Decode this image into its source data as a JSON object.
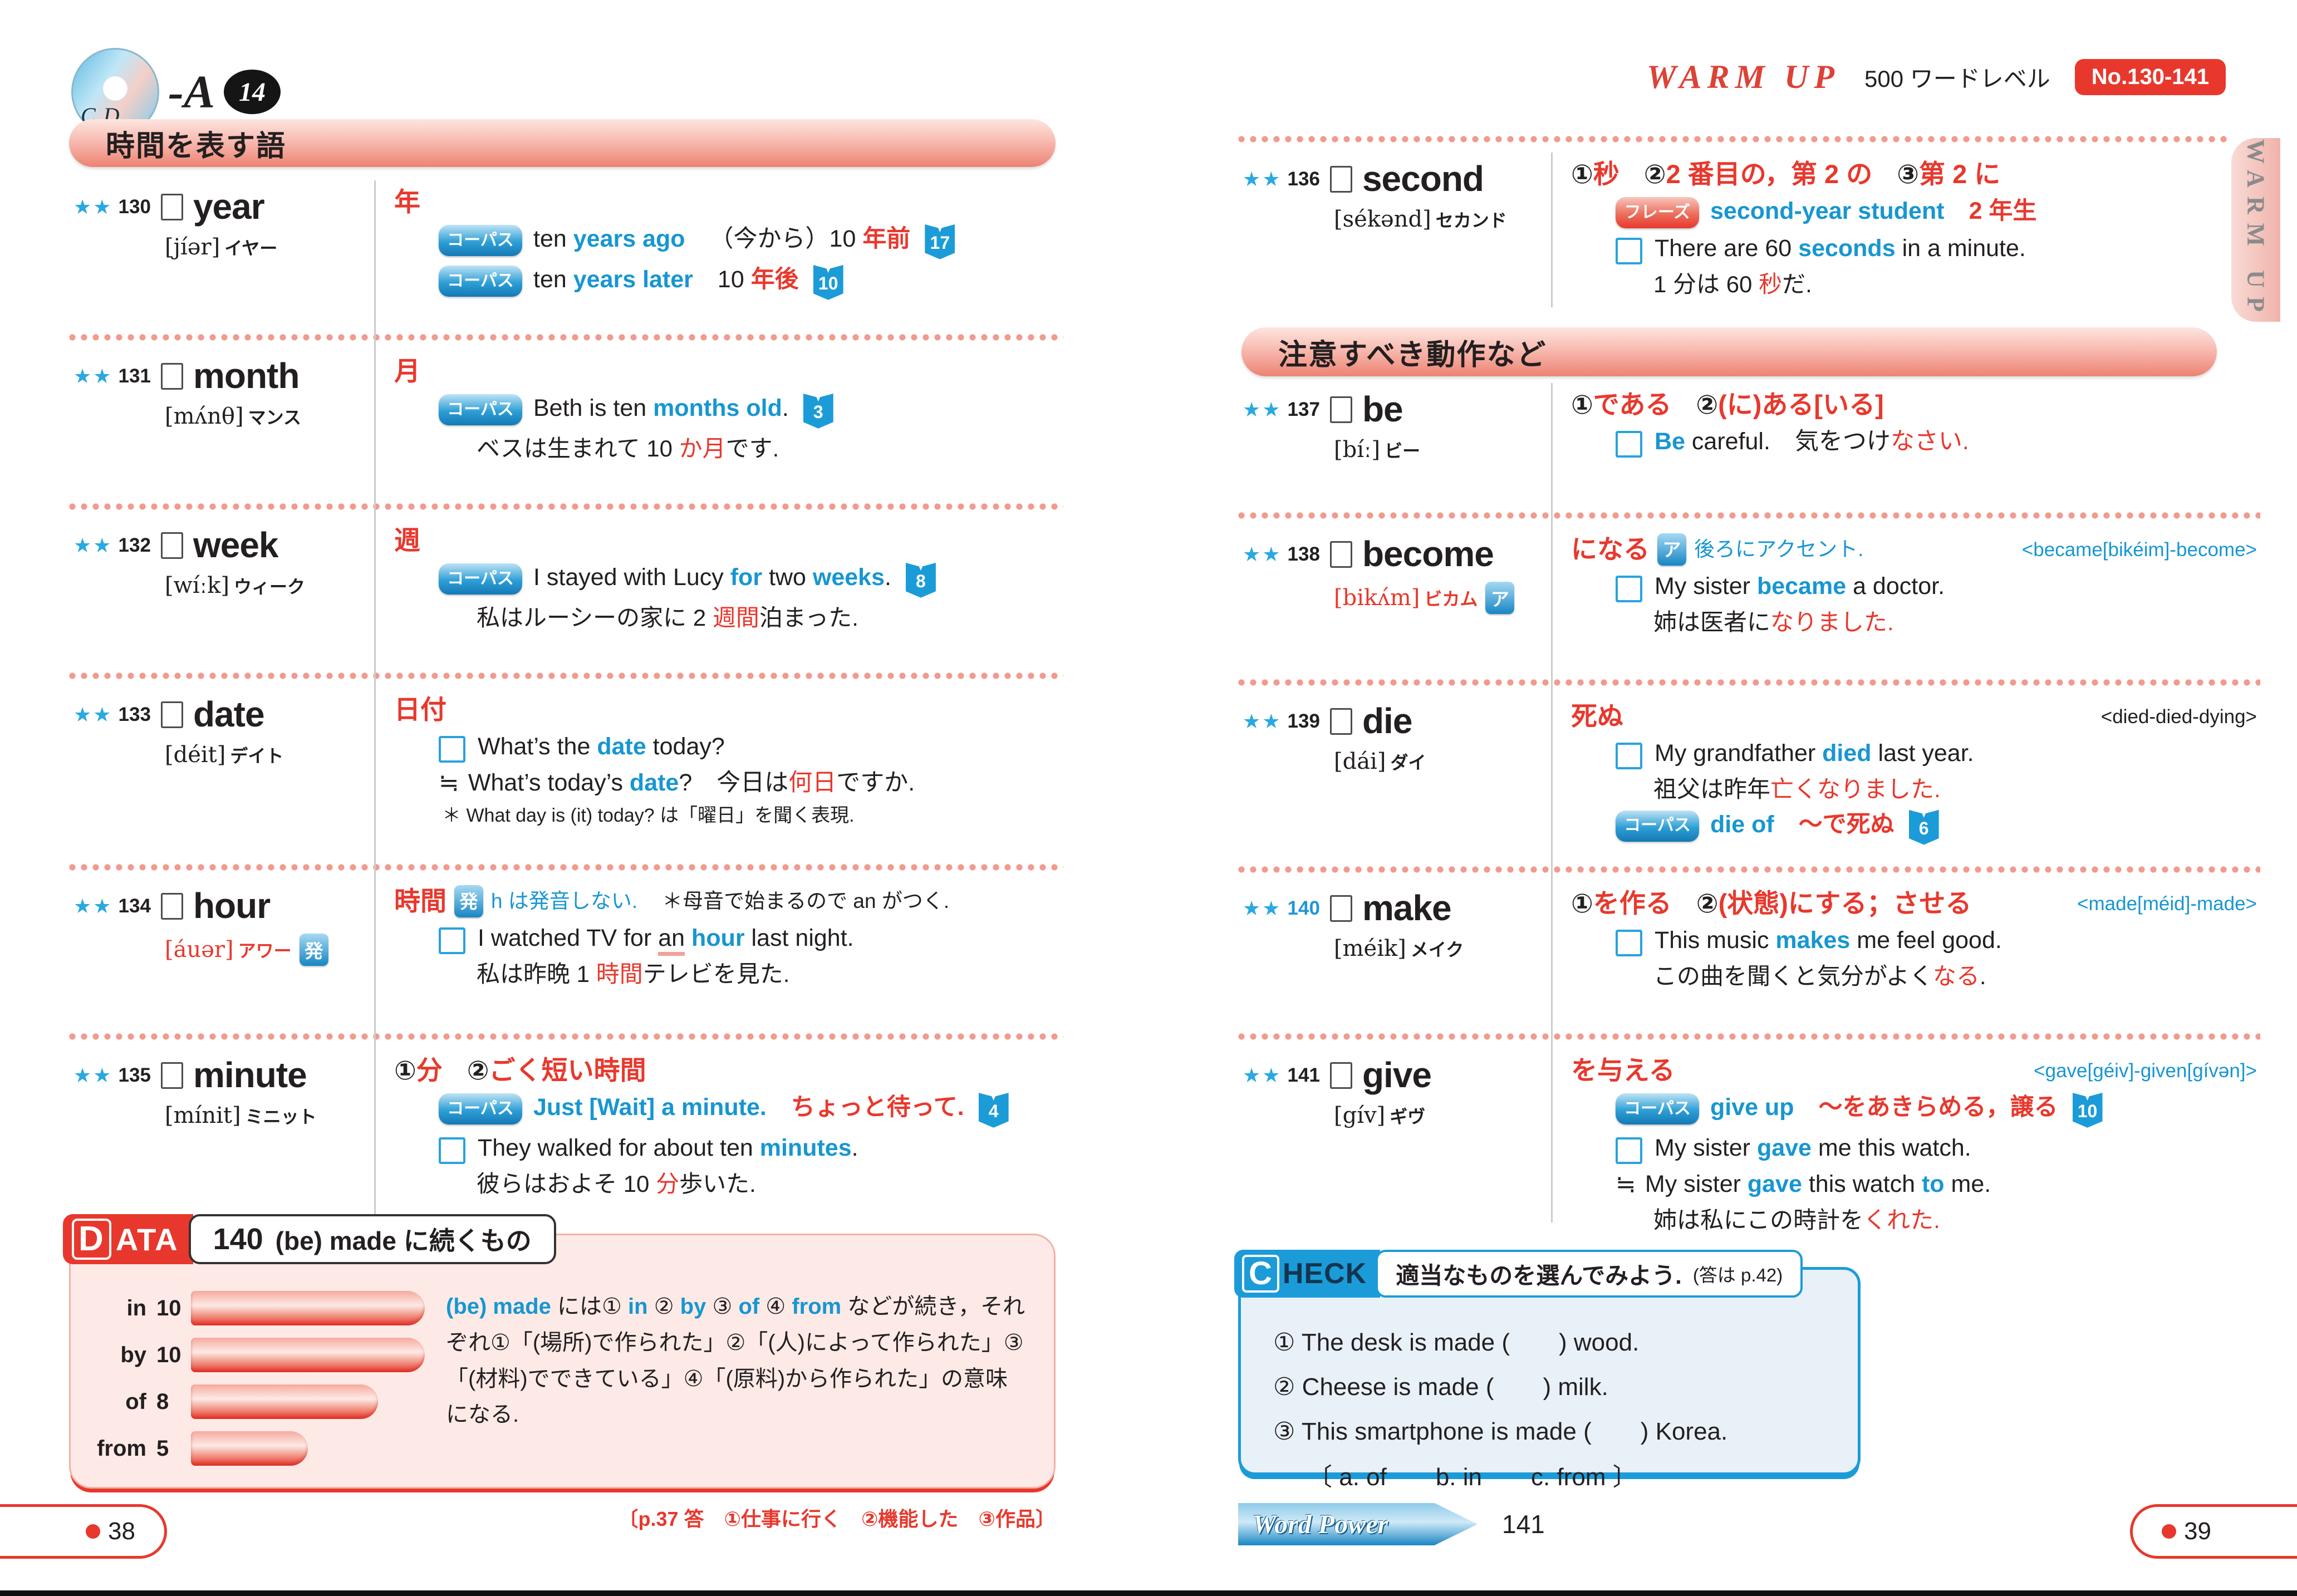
{
  "colors": {
    "accent_red": "#e8382d",
    "accent_blue": "#1b9cd8",
    "banner_pink": "#f6b1a6",
    "text": "#231f20"
  },
  "ui": {
    "corpus_badge": "コーパス",
    "phrase_badge": "フレーズ"
  },
  "page_left": {
    "cd_label": {
      "cd": "CD",
      "dash_a": "-A",
      "track": "14"
    },
    "banner": "時間を表す語",
    "entries": [
      {
        "num": "130",
        "stars": "★★",
        "word": "year",
        "pron": "[jíər]",
        "kana": "イヤー",
        "meaning": [
          {
            "t": "年",
            "c": "r"
          }
        ],
        "lines": [
          {
            "m": "corpus",
            "seg": [
              {
                "t": "ten ",
                "c": "k"
              },
              {
                "t": "years ago",
                "c": "b"
              },
              {
                "gap": 1
              },
              {
                "t": "（今から）10 ",
                "c": "k"
              },
              {
                "t": "年前",
                "c": "r",
                "b": 1
              }
            ],
            "book": "17"
          },
          {
            "m": "corpus",
            "seg": [
              {
                "t": "ten ",
                "c": "k"
              },
              {
                "t": "years later",
                "c": "b"
              },
              {
                "gap": 1
              },
              {
                "t": "10 ",
                "c": "k"
              },
              {
                "t": "年後",
                "c": "r",
                "b": 1
              }
            ],
            "book": "10"
          }
        ]
      },
      {
        "num": "131",
        "stars": "★★",
        "word": "month",
        "pron": "[mʌ́nθ]",
        "kana": "マンス",
        "meaning": [
          {
            "t": "月",
            "c": "r"
          }
        ],
        "lines": [
          {
            "m": "corpus",
            "seg": [
              {
                "t": "Beth is ten ",
                "c": "k"
              },
              {
                "t": "months old",
                "c": "b"
              },
              {
                "t": ".",
                "c": "k"
              }
            ],
            "book": "3"
          },
          {
            "m": "jp",
            "seg": [
              {
                "t": "ベスは生まれて 10 ",
                "c": "k"
              },
              {
                "t": "か月",
                "c": "r"
              },
              {
                "t": "です.",
                "c": "k"
              }
            ]
          }
        ]
      },
      {
        "num": "132",
        "stars": "★★",
        "word": "week",
        "pron": "[wíːk]",
        "kana": "ウィーク",
        "meaning": [
          {
            "t": "週",
            "c": "r"
          }
        ],
        "lines": [
          {
            "m": "corpus",
            "seg": [
              {
                "t": "I stayed with Lucy ",
                "c": "k"
              },
              {
                "t": "for",
                "c": "b"
              },
              {
                "t": " two ",
                "c": "k"
              },
              {
                "t": "weeks",
                "c": "b"
              },
              {
                "t": ".",
                "c": "k"
              }
            ],
            "book": "8"
          },
          {
            "m": "jp",
            "seg": [
              {
                "t": "私はルーシーの家に 2 ",
                "c": "k"
              },
              {
                "t": "週間",
                "c": "r"
              },
              {
                "t": "泊まった.",
                "c": "k"
              }
            ]
          }
        ]
      },
      {
        "num": "133",
        "stars": "★★",
        "word": "date",
        "pron": "[déit]",
        "kana": "デイト",
        "meaning": [
          {
            "t": "日付",
            "c": "r"
          }
        ],
        "lines": [
          {
            "m": "check",
            "seg": [
              {
                "t": "What’s the ",
                "c": "k"
              },
              {
                "t": "date",
                "c": "b"
              },
              {
                "t": " today?",
                "c": "k"
              }
            ]
          },
          {
            "m": "approx",
            "seg": [
              {
                "t": "What’s today’s ",
                "c": "k"
              },
              {
                "t": "date",
                "c": "b"
              },
              {
                "t": "?",
                "c": "k"
              },
              {
                "gap": 1
              },
              {
                "t": "今日は",
                "c": "k"
              },
              {
                "t": "何日",
                "c": "r"
              },
              {
                "t": "ですか.",
                "c": "k"
              }
            ]
          },
          {
            "m": "note",
            "seg": [
              {
                "t": "＊ What day is (it) today? は「曜日」を聞く表現.",
                "c": "k"
              }
            ]
          }
        ]
      },
      {
        "num": "134",
        "stars": "★★",
        "word": "hour",
        "pron": "[áuər]",
        "kana": "アワー",
        "pron_red": true,
        "pron_badge": "発",
        "meaning": [
          {
            "t": "時間",
            "c": "r"
          }
        ],
        "extra": [
          {
            "badge": "発"
          },
          {
            "t": "h は発音しない.",
            "c": "b"
          },
          {
            "gap": 1
          },
          {
            "t": "＊母音で始まるので an がつく.",
            "c": "k",
            "small": 1
          }
        ],
        "lines": [
          {
            "m": "check",
            "seg": [
              {
                "t": "I watched TV for ",
                "c": "k"
              },
              {
                "t": "an",
                "c": "k",
                "u": 1
              },
              {
                "t": " ",
                "c": "k"
              },
              {
                "t": "hour",
                "c": "b"
              },
              {
                "t": " last night.",
                "c": "k"
              }
            ]
          },
          {
            "m": "jp",
            "seg": [
              {
                "t": "私は昨晩 1 ",
                "c": "k"
              },
              {
                "t": "時間",
                "c": "r"
              },
              {
                "t": "テレビを見た.",
                "c": "k"
              }
            ]
          }
        ]
      },
      {
        "num": "135",
        "stars": "★★",
        "word": "minute",
        "pron": "[mínit]",
        "kana": "ミニット",
        "meaning": [
          {
            "t": "① ",
            "c": "k"
          },
          {
            "t": "分",
            "c": "r"
          },
          {
            "gap": 1
          },
          {
            "t": "② ",
            "c": "k"
          },
          {
            "t": "ごく短い時間",
            "c": "r"
          }
        ],
        "lines": [
          {
            "m": "corpus",
            "seg": [
              {
                "t": "Just [Wait] a minute.",
                "c": "b"
              },
              {
                "gap": 1
              },
              {
                "t": "ちょっと待って.",
                "c": "r",
                "b": 1
              }
            ],
            "book": "4"
          },
          {
            "m": "check",
            "seg": [
              {
                "t": "They walked for about ten ",
                "c": "k"
              },
              {
                "t": "minutes",
                "c": "b"
              },
              {
                "t": ".",
                "c": "k"
              }
            ]
          },
          {
            "m": "jp",
            "seg": [
              {
                "t": "彼らはおよそ 10 ",
                "c": "k"
              },
              {
                "t": "分",
                "c": "r"
              },
              {
                "t": "歩いた.",
                "c": "k"
              }
            ]
          }
        ]
      }
    ],
    "data_box": {
      "tab_first": "D",
      "tab_rest": "ATA",
      "title_num": "140",
      "title_text": "(be) made に続くもの",
      "note_segments": [
        {
          "t": "(be) made",
          "c": "b",
          "b": 1
        },
        {
          "t": " には① ",
          "c": "k"
        },
        {
          "t": "in",
          "c": "b",
          "b": 1
        },
        {
          "t": " ② ",
          "c": "k"
        },
        {
          "t": "by",
          "c": "b",
          "b": 1
        },
        {
          "t": " ③ ",
          "c": "k"
        },
        {
          "t": "of",
          "c": "b",
          "b": 1
        },
        {
          "t": " ④ ",
          "c": "k"
        },
        {
          "t": "from",
          "c": "b",
          "b": 1
        },
        {
          "t": " などが続き，それぞれ①「(場所)で作られた」②「(人)によって作られた」③「(材料)でできている」④「(原料)から作られた」の意味になる.",
          "c": "k"
        }
      ]
    },
    "answer_note": "〔p.37 答　①仕事に行く　②機能した　③作品〕",
    "page_number": "38"
  },
  "page_right": {
    "warmup": "WARM UP",
    "level": "500 ワードレベル",
    "range_badge": "No.130-141",
    "side_tab": "WARM UP",
    "entry_top": {
      "num": "136",
      "stars": "★★",
      "word": "second",
      "pron": "[sékənd]",
      "kana": "セカンド",
      "meaning": [
        {
          "t": "① ",
          "c": "k"
        },
        {
          "t": "秒",
          "c": "r"
        },
        {
          "gap": 1
        },
        {
          "t": "② ",
          "c": "k"
        },
        {
          "t": "2 番目の，第 2 の",
          "c": "r"
        },
        {
          "gap": 1
        },
        {
          "t": "③ ",
          "c": "k"
        },
        {
          "t": "第 2 に",
          "c": "r"
        }
      ],
      "lines": [
        {
          "m": "phrase",
          "seg": [
            {
              "t": "second-year student",
              "c": "b"
            },
            {
              "gap": 1
            },
            {
              "t": "2 年生",
              "c": "r",
              "b": 1
            }
          ]
        },
        {
          "m": "check",
          "seg": [
            {
              "t": "There are 60 ",
              "c": "k"
            },
            {
              "t": "seconds",
              "c": "b"
            },
            {
              "t": " in a minute.",
              "c": "k"
            }
          ]
        },
        {
          "m": "jp",
          "seg": [
            {
              "t": "1 分は 60 ",
              "c": "k"
            },
            {
              "t": "秒",
              "c": "r"
            },
            {
              "t": "だ.",
              "c": "k"
            }
          ]
        }
      ]
    },
    "banner": "注意すべき動作など",
    "entries": [
      {
        "num": "137",
        "stars": "★★",
        "word": "be",
        "pron": "[bíː]",
        "kana": "ビー",
        "meaning": [
          {
            "t": "① ",
            "c": "k"
          },
          {
            "t": "である",
            "c": "r"
          },
          {
            "gap": 1
          },
          {
            "t": "② ",
            "c": "k"
          },
          {
            "t": "(に)ある[いる]",
            "c": "r"
          }
        ],
        "lines": [
          {
            "m": "check",
            "seg": [
              {
                "t": "Be",
                "c": "b"
              },
              {
                "t": " careful.",
                "c": "k"
              },
              {
                "gap": 1
              },
              {
                "t": "気をつけ",
                "c": "k"
              },
              {
                "t": "なさい.",
                "c": "r"
              }
            ]
          }
        ]
      },
      {
        "num": "138",
        "stars": "★★",
        "word": "become",
        "pron": "[bikʌ́m]",
        "kana": "ビカム",
        "pron_red": true,
        "pron_badge": "ア",
        "meaning": [
          {
            "t": "になる",
            "c": "r"
          }
        ],
        "extra": [
          {
            "badge": "ア"
          },
          {
            "t": "後ろにアクセント.",
            "c": "b"
          }
        ],
        "annot": {
          "t": "<became[bikéim]-become>",
          "c": "b"
        },
        "lines": [
          {
            "m": "check",
            "seg": [
              {
                "t": "My sister ",
                "c": "k"
              },
              {
                "t": "became",
                "c": "b"
              },
              {
                "t": " a doctor.",
                "c": "k"
              }
            ]
          },
          {
            "m": "jp",
            "seg": [
              {
                "t": "姉は医者に",
                "c": "k"
              },
              {
                "t": "なりました.",
                "c": "r"
              }
            ]
          }
        ]
      },
      {
        "num": "139",
        "stars": "★★",
        "word": "die",
        "pron": "[dái]",
        "kana": "ダイ",
        "meaning": [
          {
            "t": "死ぬ",
            "c": "r"
          }
        ],
        "annot": {
          "t": "<died-died-dying>",
          "c": "k"
        },
        "lines": [
          {
            "m": "check",
            "seg": [
              {
                "t": "My grandfather ",
                "c": "k"
              },
              {
                "t": "died",
                "c": "b"
              },
              {
                "t": " last year.",
                "c": "k"
              }
            ]
          },
          {
            "m": "jp",
            "seg": [
              {
                "t": "祖父は昨年",
                "c": "k"
              },
              {
                "t": "亡くなりました.",
                "c": "r"
              }
            ]
          },
          {
            "m": "corpus",
            "seg": [
              {
                "t": "die of",
                "c": "b"
              },
              {
                "gap": 1
              },
              {
                "t": "～で死ぬ",
                "c": "r",
                "b": 1
              }
            ],
            "book": "6"
          }
        ]
      },
      {
        "num": "140",
        "stars": "★★",
        "word": "make",
        "pron": "[méik]",
        "kana": "メイク",
        "num_blue": true,
        "meaning": [
          {
            "t": "① ",
            "c": "k"
          },
          {
            "t": "を作る",
            "c": "r"
          },
          {
            "gap": 1
          },
          {
            "t": "② ",
            "c": "k"
          },
          {
            "t": "(状態)にする；させる",
            "c": "r"
          }
        ],
        "annot": {
          "t": "<made[méid]-made>",
          "c": "b"
        },
        "lines": [
          {
            "m": "check",
            "seg": [
              {
                "t": "This music ",
                "c": "k"
              },
              {
                "t": "makes",
                "c": "b"
              },
              {
                "t": " me feel good.",
                "c": "k"
              }
            ]
          },
          {
            "m": "jp",
            "seg": [
              {
                "t": "この曲を聞くと気分がよく",
                "c": "k"
              },
              {
                "t": "なる",
                "c": "r"
              },
              {
                "t": ".",
                "c": "k"
              }
            ]
          }
        ]
      },
      {
        "num": "141",
        "stars": "★★",
        "word": "give",
        "pron": "[gív]",
        "kana": "ギヴ",
        "meaning": [
          {
            "t": "を与える",
            "c": "r"
          }
        ],
        "annot": {
          "t": "<gave[géiv]-given[gívən]>",
          "c": "b"
        },
        "lines": [
          {
            "m": "corpus",
            "seg": [
              {
                "t": "give up",
                "c": "b"
              },
              {
                "gap": 1
              },
              {
                "t": "～をあきらめる，譲る",
                "c": "r",
                "b": 1
              }
            ],
            "book": "10"
          },
          {
            "m": "check",
            "seg": [
              {
                "t": "My sister ",
                "c": "k"
              },
              {
                "t": "gave",
                "c": "b"
              },
              {
                "t": " me this watch.",
                "c": "k"
              }
            ]
          },
          {
            "m": "approx",
            "seg": [
              {
                "t": "My sister ",
                "c": "k"
              },
              {
                "t": "gave",
                "c": "b"
              },
              {
                "t": " this watch ",
                "c": "k"
              },
              {
                "t": "to",
                "c": "b"
              },
              {
                "t": " me.",
                "c": "k"
              }
            ]
          },
          {
            "m": "jp",
            "seg": [
              {
                "t": "姉は私にこの時計を",
                "c": "k"
              },
              {
                "t": "くれた.",
                "c": "r"
              }
            ]
          }
        ]
      }
    ],
    "check_box": {
      "tab_first": "C",
      "tab_rest": "HECK",
      "title": "適当なものを選んでみよう.",
      "title_sub": "(答は p.42)",
      "items": [
        "① The desk is made (　　) wood.",
        "② Cheese is made (　　) milk.",
        "③ This smartphone is made (　　) Korea."
      ],
      "options": "〔 a. of　　b. in　　c. from 〕"
    },
    "wordpower": "Word Power",
    "wordpower_num": "141",
    "page_number": "39"
  },
  "chart_data": {
    "type": "bar",
    "orientation": "horizontal",
    "title": "140 (be) made に続くもの",
    "categories": [
      "in",
      "by",
      "of",
      "from"
    ],
    "values": [
      10,
      10,
      8,
      5
    ],
    "xlabel": "",
    "ylabel": "",
    "xlim": [
      0,
      10
    ],
    "grid": false,
    "legend_position": "none"
  }
}
